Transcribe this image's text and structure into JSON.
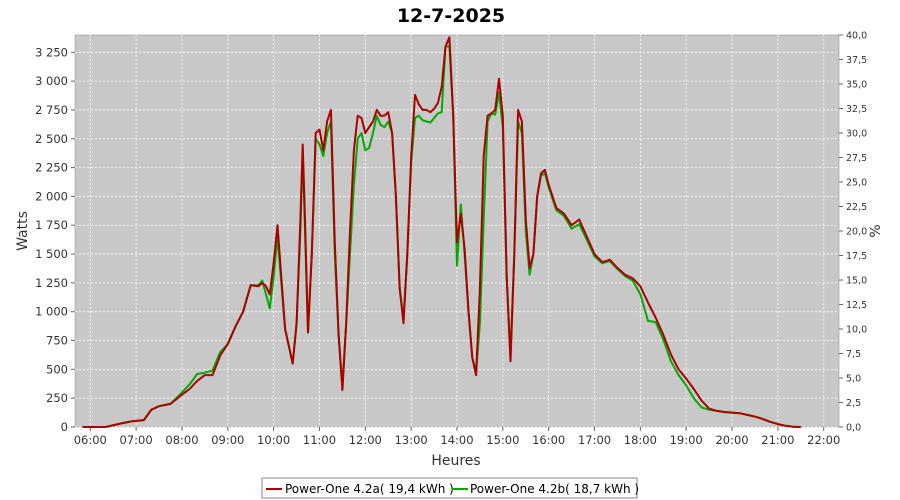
{
  "chart_data": {
    "type": "line",
    "title": "12-7-2025",
    "xlabel": "Heures",
    "ylabel": "Watts",
    "ylabel_right": "%",
    "x_ticks": [
      "06:00",
      "07:00",
      "08:00",
      "09:00",
      "10:00",
      "11:00",
      "12:00",
      "13:00",
      "14:00",
      "15:00",
      "16:00",
      "17:00",
      "18:00",
      "19:00",
      "20:00",
      "21:00",
      "22:00"
    ],
    "y_ticks": [
      "0",
      "250",
      "500",
      "750",
      "1 000",
      "1 250",
      "1 500",
      "1 750",
      "2 000",
      "2 250",
      "2 500",
      "2 750",
      "3 000",
      "3 250"
    ],
    "y_right_ticks": [
      "0,0",
      "2,5",
      "5,0",
      "7,5",
      "10,0",
      "12,5",
      "15,0",
      "17,5",
      "20,0",
      "22,5",
      "25,0",
      "27,5",
      "30,0",
      "32,5",
      "35,0",
      "37,5",
      "40,0"
    ],
    "xlim": [
      "05:40",
      "22:20"
    ],
    "ylim": [
      0,
      3400
    ],
    "y_right_lim": [
      0,
      40
    ],
    "grid": true,
    "legend_position": "bottom",
    "series": [
      {
        "name": "Power-One 4.2a( 19,4 kWh )",
        "color": "#aa0000",
        "points": [
          [
            "05:50",
            0
          ],
          [
            "06:20",
            0
          ],
          [
            "06:40",
            30
          ],
          [
            "06:55",
            50
          ],
          [
            "07:10",
            60
          ],
          [
            "07:20",
            150
          ],
          [
            "07:30",
            180
          ],
          [
            "07:45",
            200
          ],
          [
            "08:00",
            280
          ],
          [
            "08:10",
            330
          ],
          [
            "08:20",
            400
          ],
          [
            "08:30",
            450
          ],
          [
            "08:40",
            450
          ],
          [
            "08:50",
            620
          ],
          [
            "09:00",
            720
          ],
          [
            "09:10",
            870
          ],
          [
            "09:20",
            1000
          ],
          [
            "09:30",
            1230
          ],
          [
            "09:40",
            1220
          ],
          [
            "09:45",
            1250
          ],
          [
            "09:50",
            1220
          ],
          [
            "09:55",
            1150
          ],
          [
            "10:00",
            1420
          ],
          [
            "10:05",
            1750
          ],
          [
            "10:10",
            1300
          ],
          [
            "10:15",
            850
          ],
          [
            "10:20",
            700
          ],
          [
            "10:25",
            550
          ],
          [
            "10:30",
            900
          ],
          [
            "10:35",
            1800
          ],
          [
            "10:38",
            2450
          ],
          [
            "10:41",
            1800
          ],
          [
            "10:45",
            820
          ],
          [
            "10:50",
            1500
          ],
          [
            "10:55",
            2550
          ],
          [
            "11:00",
            2580
          ],
          [
            "11:05",
            2400
          ],
          [
            "11:10",
            2650
          ],
          [
            "11:15",
            2750
          ],
          [
            "11:20",
            1600
          ],
          [
            "11:25",
            800
          ],
          [
            "11:30",
            320
          ],
          [
            "11:35",
            900
          ],
          [
            "11:40",
            1700
          ],
          [
            "11:45",
            2400
          ],
          [
            "11:50",
            2700
          ],
          [
            "11:55",
            2680
          ],
          [
            "12:00",
            2550
          ],
          [
            "12:05",
            2600
          ],
          [
            "12:10",
            2650
          ],
          [
            "12:15",
            2750
          ],
          [
            "12:20",
            2700
          ],
          [
            "12:25",
            2700
          ],
          [
            "12:30",
            2730
          ],
          [
            "12:35",
            2550
          ],
          [
            "12:40",
            2000
          ],
          [
            "12:45",
            1200
          ],
          [
            "12:50",
            900
          ],
          [
            "12:55",
            1500
          ],
          [
            "13:00",
            2350
          ],
          [
            "13:05",
            2880
          ],
          [
            "13:10",
            2800
          ],
          [
            "13:15",
            2750
          ],
          [
            "13:20",
            2750
          ],
          [
            "13:25",
            2730
          ],
          [
            "13:30",
            2760
          ],
          [
            "13:35",
            2810
          ],
          [
            "13:40",
            2950
          ],
          [
            "13:45",
            3300
          ],
          [
            "13:50",
            3380
          ],
          [
            "13:55",
            2700
          ],
          [
            "14:00",
            1600
          ],
          [
            "14:05",
            1850
          ],
          [
            "14:10",
            1550
          ],
          [
            "14:15",
            1000
          ],
          [
            "14:20",
            600
          ],
          [
            "14:25",
            450
          ],
          [
            "14:30",
            1200
          ],
          [
            "14:35",
            2350
          ],
          [
            "14:40",
            2700
          ],
          [
            "14:45",
            2720
          ],
          [
            "14:50",
            2750
          ],
          [
            "14:55",
            3020
          ],
          [
            "15:00",
            2700
          ],
          [
            "15:05",
            1300
          ],
          [
            "15:10",
            570
          ],
          [
            "15:15",
            1500
          ],
          [
            "15:20",
            2750
          ],
          [
            "15:25",
            2650
          ],
          [
            "15:30",
            1800
          ],
          [
            "15:35",
            1380
          ],
          [
            "15:40",
            1500
          ],
          [
            "15:45",
            2000
          ],
          [
            "15:50",
            2200
          ],
          [
            "15:55",
            2230
          ],
          [
            "16:00",
            2100
          ],
          [
            "16:10",
            1900
          ],
          [
            "16:20",
            1850
          ],
          [
            "16:30",
            1750
          ],
          [
            "16:40",
            1800
          ],
          [
            "16:50",
            1650
          ],
          [
            "17:00",
            1500
          ],
          [
            "17:10",
            1430
          ],
          [
            "17:20",
            1450
          ],
          [
            "17:30",
            1380
          ],
          [
            "17:40",
            1320
          ],
          [
            "17:50",
            1290
          ],
          [
            "18:00",
            1220
          ],
          [
            "18:10",
            1080
          ],
          [
            "18:20",
            950
          ],
          [
            "18:30",
            800
          ],
          [
            "18:40",
            630
          ],
          [
            "18:50",
            500
          ],
          [
            "19:00",
            420
          ],
          [
            "19:10",
            330
          ],
          [
            "19:20",
            230
          ],
          [
            "19:30",
            160
          ],
          [
            "19:40",
            140
          ],
          [
            "19:50",
            130
          ],
          [
            "20:00",
            125
          ],
          [
            "20:10",
            120
          ],
          [
            "20:20",
            105
          ],
          [
            "20:30",
            90
          ],
          [
            "20:40",
            70
          ],
          [
            "20:50",
            45
          ],
          [
            "21:00",
            25
          ],
          [
            "21:10",
            10
          ],
          [
            "21:20",
            3
          ],
          [
            "21:30",
            0
          ]
        ]
      },
      {
        "name": "Power-One 4.2b( 18,7 kWh )",
        "color": "#00aa00",
        "points": [
          [
            "05:50",
            0
          ],
          [
            "06:20",
            0
          ],
          [
            "06:40",
            30
          ],
          [
            "06:55",
            50
          ],
          [
            "07:10",
            60
          ],
          [
            "07:20",
            150
          ],
          [
            "07:30",
            180
          ],
          [
            "07:45",
            200
          ],
          [
            "08:00",
            300
          ],
          [
            "08:10",
            370
          ],
          [
            "08:20",
            460
          ],
          [
            "08:30",
            470
          ],
          [
            "08:40",
            490
          ],
          [
            "08:50",
            650
          ],
          [
            "09:00",
            720
          ],
          [
            "09:10",
            870
          ],
          [
            "09:20",
            1000
          ],
          [
            "09:30",
            1230
          ],
          [
            "09:40",
            1230
          ],
          [
            "09:45",
            1270
          ],
          [
            "09:50",
            1150
          ],
          [
            "09:55",
            1030
          ],
          [
            "10:00",
            1300
          ],
          [
            "10:05",
            1650
          ],
          [
            "10:10",
            1250
          ],
          [
            "10:15",
            850
          ],
          [
            "10:20",
            700
          ],
          [
            "10:25",
            550
          ],
          [
            "10:30",
            900
          ],
          [
            "10:35",
            1700
          ],
          [
            "10:38",
            2400
          ],
          [
            "10:41",
            1700
          ],
          [
            "10:45",
            820
          ],
          [
            "10:50",
            1500
          ],
          [
            "10:55",
            2500
          ],
          [
            "11:00",
            2450
          ],
          [
            "11:05",
            2350
          ],
          [
            "11:10",
            2550
          ],
          [
            "11:15",
            2650
          ],
          [
            "11:20",
            1500
          ],
          [
            "11:25",
            800
          ],
          [
            "11:30",
            360
          ],
          [
            "11:35",
            900
          ],
          [
            "11:40",
            1500
          ],
          [
            "11:45",
            2100
          ],
          [
            "11:50",
            2500
          ],
          [
            "11:55",
            2550
          ],
          [
            "12:00",
            2400
          ],
          [
            "12:05",
            2420
          ],
          [
            "12:10",
            2550
          ],
          [
            "12:15",
            2700
          ],
          [
            "12:20",
            2620
          ],
          [
            "12:25",
            2600
          ],
          [
            "12:30",
            2650
          ],
          [
            "12:35",
            2550
          ],
          [
            "12:40",
            2000
          ],
          [
            "12:45",
            1200
          ],
          [
            "12:50",
            950
          ],
          [
            "12:55",
            1500
          ],
          [
            "13:00",
            2300
          ],
          [
            "13:05",
            2680
          ],
          [
            "13:10",
            2700
          ],
          [
            "13:15",
            2660
          ],
          [
            "13:20",
            2650
          ],
          [
            "13:25",
            2640
          ],
          [
            "13:30",
            2680
          ],
          [
            "13:35",
            2720
          ],
          [
            "13:40",
            2730
          ],
          [
            "13:45",
            3300
          ],
          [
            "13:50",
            3300
          ],
          [
            "13:55",
            2700
          ],
          [
            "14:00",
            1400
          ],
          [
            "14:05",
            1930
          ],
          [
            "14:10",
            1500
          ],
          [
            "14:15",
            1000
          ],
          [
            "14:20",
            600
          ],
          [
            "14:25",
            480
          ],
          [
            "14:30",
            900
          ],
          [
            "14:35",
            1800
          ],
          [
            "14:40",
            2650
          ],
          [
            "14:45",
            2720
          ],
          [
            "14:50",
            2710
          ],
          [
            "14:55",
            2900
          ],
          [
            "15:00",
            2600
          ],
          [
            "15:05",
            1300
          ],
          [
            "15:10",
            620
          ],
          [
            "15:15",
            1500
          ],
          [
            "15:20",
            2650
          ],
          [
            "15:25",
            2550
          ],
          [
            "15:30",
            1700
          ],
          [
            "15:35",
            1320
          ],
          [
            "15:40",
            1500
          ],
          [
            "15:45",
            2000
          ],
          [
            "15:50",
            2180
          ],
          [
            "15:55",
            2200
          ],
          [
            "16:00",
            2080
          ],
          [
            "16:10",
            1880
          ],
          [
            "16:20",
            1830
          ],
          [
            "16:30",
            1720
          ],
          [
            "16:40",
            1760
          ],
          [
            "16:50",
            1620
          ],
          [
            "17:00",
            1480
          ],
          [
            "17:10",
            1420
          ],
          [
            "17:20",
            1440
          ],
          [
            "17:30",
            1370
          ],
          [
            "17:40",
            1310
          ],
          [
            "17:50",
            1270
          ],
          [
            "18:00",
            1150
          ],
          [
            "18:10",
            920
          ],
          [
            "18:20",
            910
          ],
          [
            "18:30",
            760
          ],
          [
            "18:40",
            570
          ],
          [
            "18:50",
            450
          ],
          [
            "19:00",
            360
          ],
          [
            "19:10",
            250
          ],
          [
            "19:20",
            170
          ],
          [
            "19:30",
            150
          ],
          [
            "19:40",
            140
          ],
          [
            "19:50",
            130
          ],
          [
            "20:00",
            125
          ],
          [
            "20:10",
            120
          ],
          [
            "20:20",
            105
          ],
          [
            "20:30",
            90
          ],
          [
            "20:40",
            70
          ],
          [
            "20:50",
            45
          ],
          [
            "21:00",
            25
          ],
          [
            "21:10",
            10
          ],
          [
            "21:20",
            3
          ],
          [
            "21:30",
            0
          ]
        ]
      }
    ]
  }
}
